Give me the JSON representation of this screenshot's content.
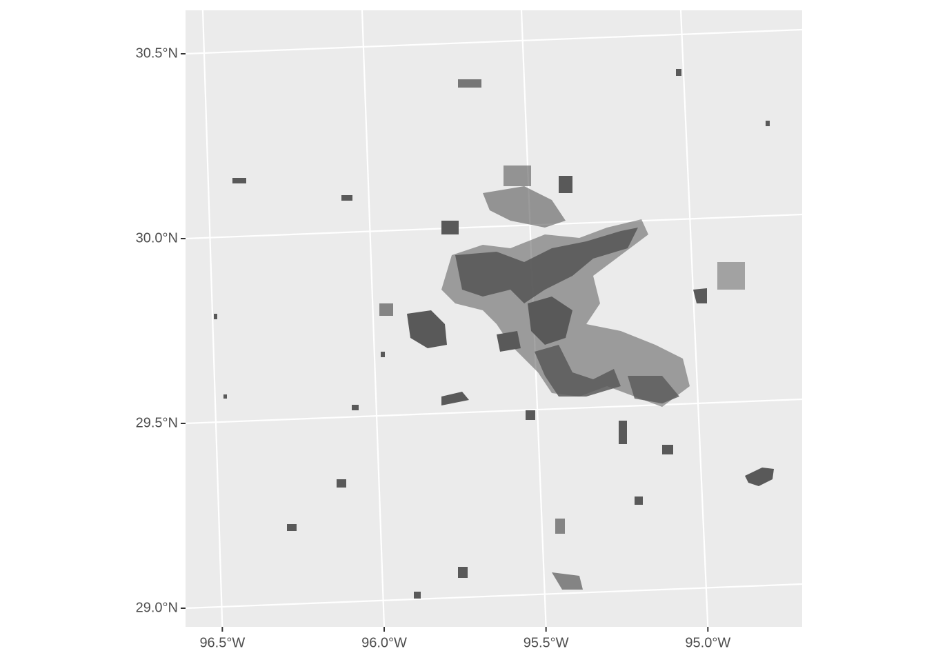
{
  "chart_data": {
    "type": "map",
    "xticks": [
      {
        "value": -96.5,
        "label": "96.5°W"
      },
      {
        "value": -96.0,
        "label": "96.0°W"
      },
      {
        "value": -95.5,
        "label": "95.5°W"
      },
      {
        "value": -95.0,
        "label": "95.0°W"
      }
    ],
    "yticks": [
      {
        "value": 30.5,
        "label": "30.5°N"
      },
      {
        "value": 30.0,
        "label": "30.0°N"
      },
      {
        "value": 29.5,
        "label": "29.5°N"
      },
      {
        "value": 29.0,
        "label": "29.0°N"
      }
    ],
    "grid": true,
    "color": "#595959"
  }
}
